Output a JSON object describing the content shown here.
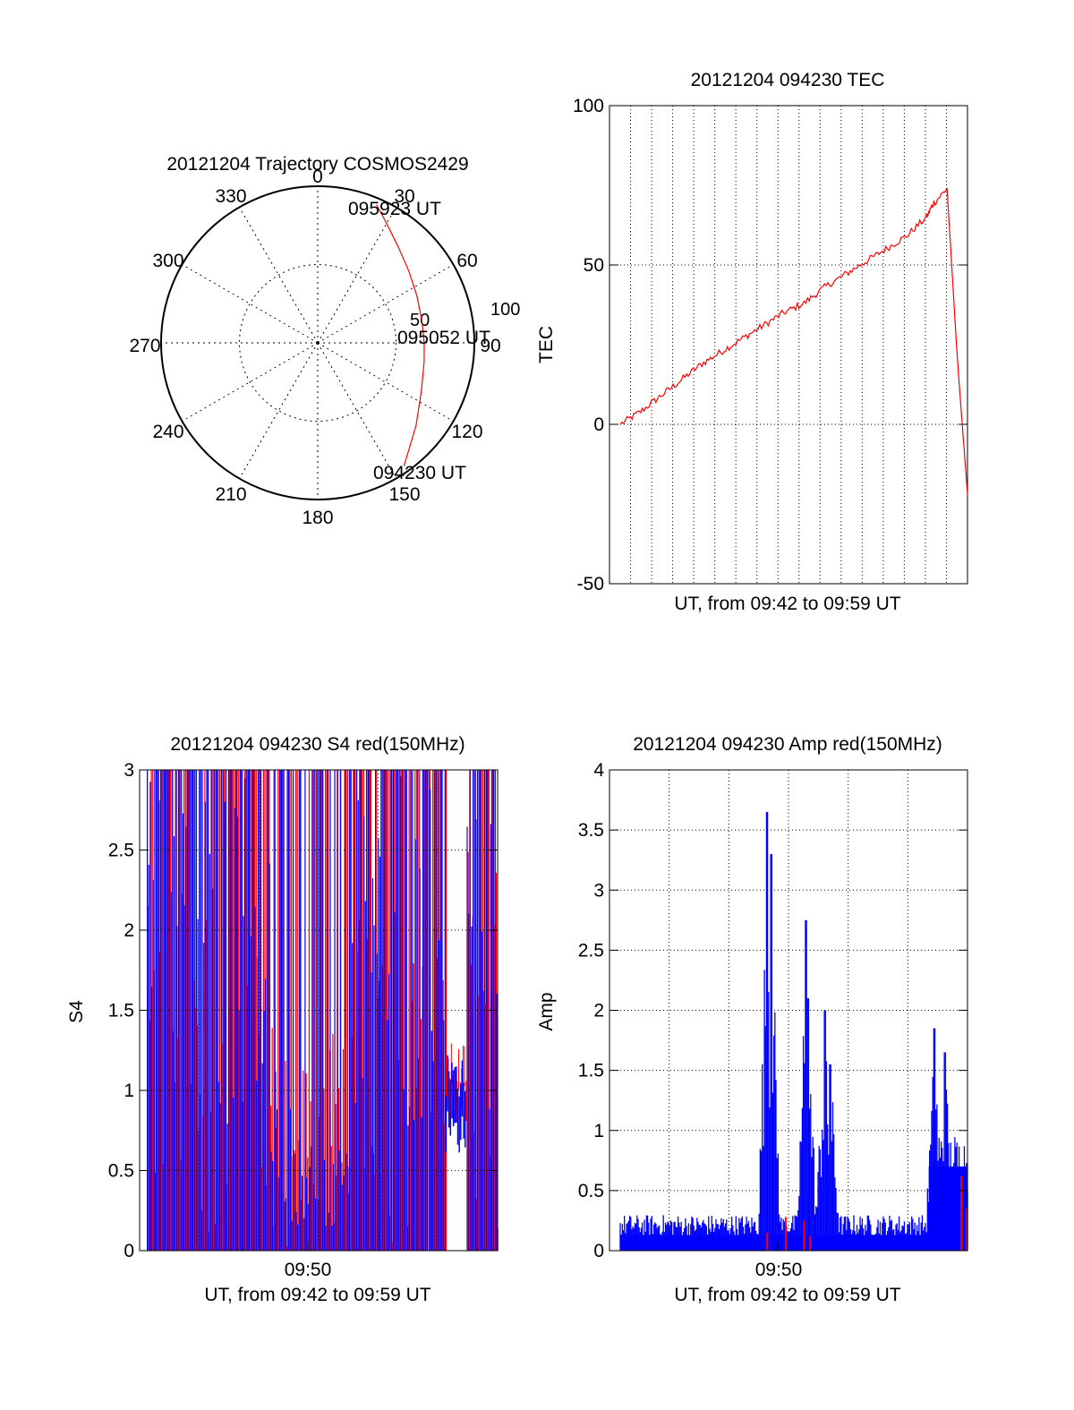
{
  "colors": {
    "red": "#ff0000",
    "blue": "#0000ff",
    "axis": "#000000"
  },
  "polar": {
    "title": "20121204 Trajectory COSMOS2429",
    "angle_labels": [
      "0",
      "30",
      "60",
      "90",
      "120",
      "150",
      "180",
      "210",
      "240",
      "270",
      "300",
      "330"
    ],
    "radius_labels": [
      "50",
      "100"
    ],
    "start_label": "094230 UT",
    "mid_label": "095052 UT",
    "end_label": "095923 UT"
  },
  "tec": {
    "title": "20121204 094230 TEC",
    "xlabel": "UT, from 09:42 to 09:59 UT",
    "ylabel": "TEC",
    "ytick_labels": [
      "-50",
      "0",
      "50",
      "100"
    ]
  },
  "s4": {
    "title": "20121204 094230 S4 red(150MHz)",
    "xlabel": "UT, from 09:42 to 09:59 UT",
    "ylabel": "S4",
    "xtick_label": "09:50",
    "ytick_labels": [
      "0",
      "0.5",
      "1",
      "1.5",
      "2",
      "2.5",
      "3"
    ]
  },
  "amp": {
    "title": "20121204 094230 Amp red(150MHz)",
    "xlabel": "UT, from 09:42 to 09:59 UT",
    "ylabel": "Amp",
    "xtick_label": "09:50",
    "ytick_labels": [
      "0",
      "0.5",
      "1",
      "1.5",
      "2",
      "2.5",
      "3",
      "3.5",
      "4"
    ]
  },
  "chart_data": [
    {
      "type": "scatter",
      "title": "20121204 Trajectory COSMOS2429",
      "projection": "polar (azimuth clockwise from north, radius = zenith angle)",
      "rlim": [
        0,
        100
      ],
      "grid": true,
      "series": [
        {
          "color": "#ff0000",
          "points_az_deg_zenith_deg": [
            [
              145,
              96
            ],
            [
              130,
              82
            ],
            [
              115,
              73
            ],
            [
              100,
              69
            ],
            [
              90,
              68
            ],
            [
              78,
              68
            ],
            [
              65,
              70
            ],
            [
              52,
              74
            ],
            [
              40,
              80
            ],
            [
              30,
              88
            ],
            [
              23,
              96
            ]
          ]
        }
      ],
      "annotations": [
        "094230 UT",
        "095052 UT",
        "095923 UT"
      ]
    },
    {
      "type": "line",
      "title": "20121204 094230 TEC",
      "xlabel": "UT, from 09:42 to 09:59 UT",
      "ylabel": "TEC",
      "xlim": [
        "09:42:30",
        "09:59:23"
      ],
      "ylim": [
        -50,
        100
      ],
      "grid": true,
      "series": [
        {
          "color": "#ff0000",
          "x_minutes_from_start": [
            0,
            1,
            2,
            3,
            4,
            5,
            6,
            7,
            8,
            9,
            10,
            11,
            12,
            13,
            14,
            15,
            15.3,
            16,
            16.5,
            17
          ],
          "values": [
            0,
            4,
            9,
            14,
            19,
            23,
            27,
            31,
            35,
            38,
            43,
            47,
            51,
            55,
            59,
            65,
            69,
            74,
            21,
            -22
          ]
        }
      ]
    },
    {
      "type": "bar",
      "title": "20121204 094230 S4 red(150MHz)",
      "xlabel": "UT, from 09:42 to 09:59 UT",
      "ylabel": "S4",
      "xlim": [
        "09:42:30",
        "09:59:23"
      ],
      "ylim": [
        0,
        3
      ],
      "xticks": [
        "09:50"
      ],
      "grid": true,
      "series": [
        {
          "color": "#ff0000",
          "description": "dense vertical spikes 0–3 across most of the pass; ~1.0 baseline 09:57–09:58"
        },
        {
          "color": "#0000ff",
          "description": "dense vertical spikes 0–3; dips to 0.3–1.0 near 09:50; ~0.9 baseline 09:57–09:58"
        }
      ],
      "segments": [
        {
          "x0": 0.0,
          "x1": 1.8,
          "red_level": 2.4,
          "blue_level": 2.8
        },
        {
          "x0": 1.8,
          "x1": 3.6,
          "red_level": 2.1,
          "blue_level": 2.6
        },
        {
          "x0": 3.6,
          "x1": 6.0,
          "red_level": 1.9,
          "blue_level": 2.5
        },
        {
          "x0": 6.0,
          "x1": 7.0,
          "red_level": 1.5,
          "blue_level": 1.0
        },
        {
          "x0": 7.0,
          "x1": 9.8,
          "red_level": 1.4,
          "blue_level": 0.5
        },
        {
          "x0": 9.8,
          "x1": 11.2,
          "red_level": 2.2,
          "blue_level": 2.6
        },
        {
          "x0": 11.2,
          "x1": 14.5,
          "red_level": 2.0,
          "blue_level": 2.5
        },
        {
          "x0": 14.5,
          "x1": 15.5,
          "red_level": 1.0,
          "blue_level": 0.9
        },
        {
          "x0": 15.5,
          "x1": 17.0,
          "red_level": 2.6,
          "blue_level": 2.8
        }
      ]
    },
    {
      "type": "bar",
      "title": "20121204 094230 Amp red(150MHz)",
      "xlabel": "UT, from 09:42 to 09:59 UT",
      "ylabel": "Amp",
      "xlim": [
        "09:42:30",
        "09:59:23"
      ],
      "ylim": [
        0,
        4
      ],
      "xticks": [
        "09:50"
      ],
      "grid": true,
      "series": [
        {
          "name": "",
          "color": "#0000ff",
          "baseline_level": 0.3,
          "peaks_x_minutes": [
            7.2,
            7.4,
            9.1,
            9.2,
            10.0,
            10.3,
            15.4,
            15.9
          ],
          "peaks_values": [
            3.65,
            3.3,
            2.75,
            2.1,
            2.0,
            1.55,
            1.85,
            1.65
          ]
        },
        {
          "color": "#ff0000",
          "description": "mostly hidden beneath blue; small values near 0–0.6"
        }
      ]
    }
  ]
}
